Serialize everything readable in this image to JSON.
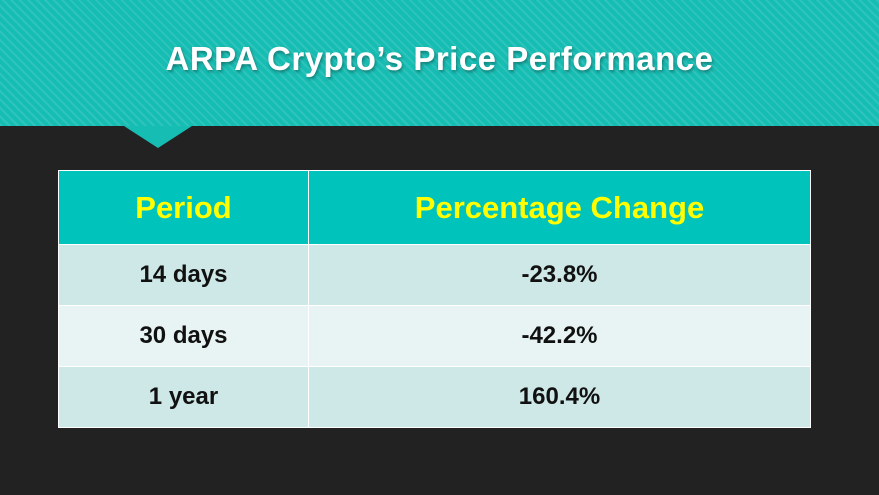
{
  "title": "ARPA Crypto’s Price Performance",
  "colors": {
    "header_band": "#16bdb3",
    "table_header_bg": "#00c4bc",
    "table_header_text": "#ffff00",
    "row_odd": "#cde8e6",
    "row_even": "#e8f4f3",
    "background": "#222222"
  },
  "chart_data": {
    "type": "table",
    "title": "ARPA Crypto’s Price Performance",
    "columns": [
      "Period",
      "Percentage Change"
    ],
    "rows": [
      [
        "14 days",
        "-23.8%"
      ],
      [
        "30 days",
        "-42.2%"
      ],
      [
        "1 year",
        "160.4%"
      ]
    ]
  }
}
